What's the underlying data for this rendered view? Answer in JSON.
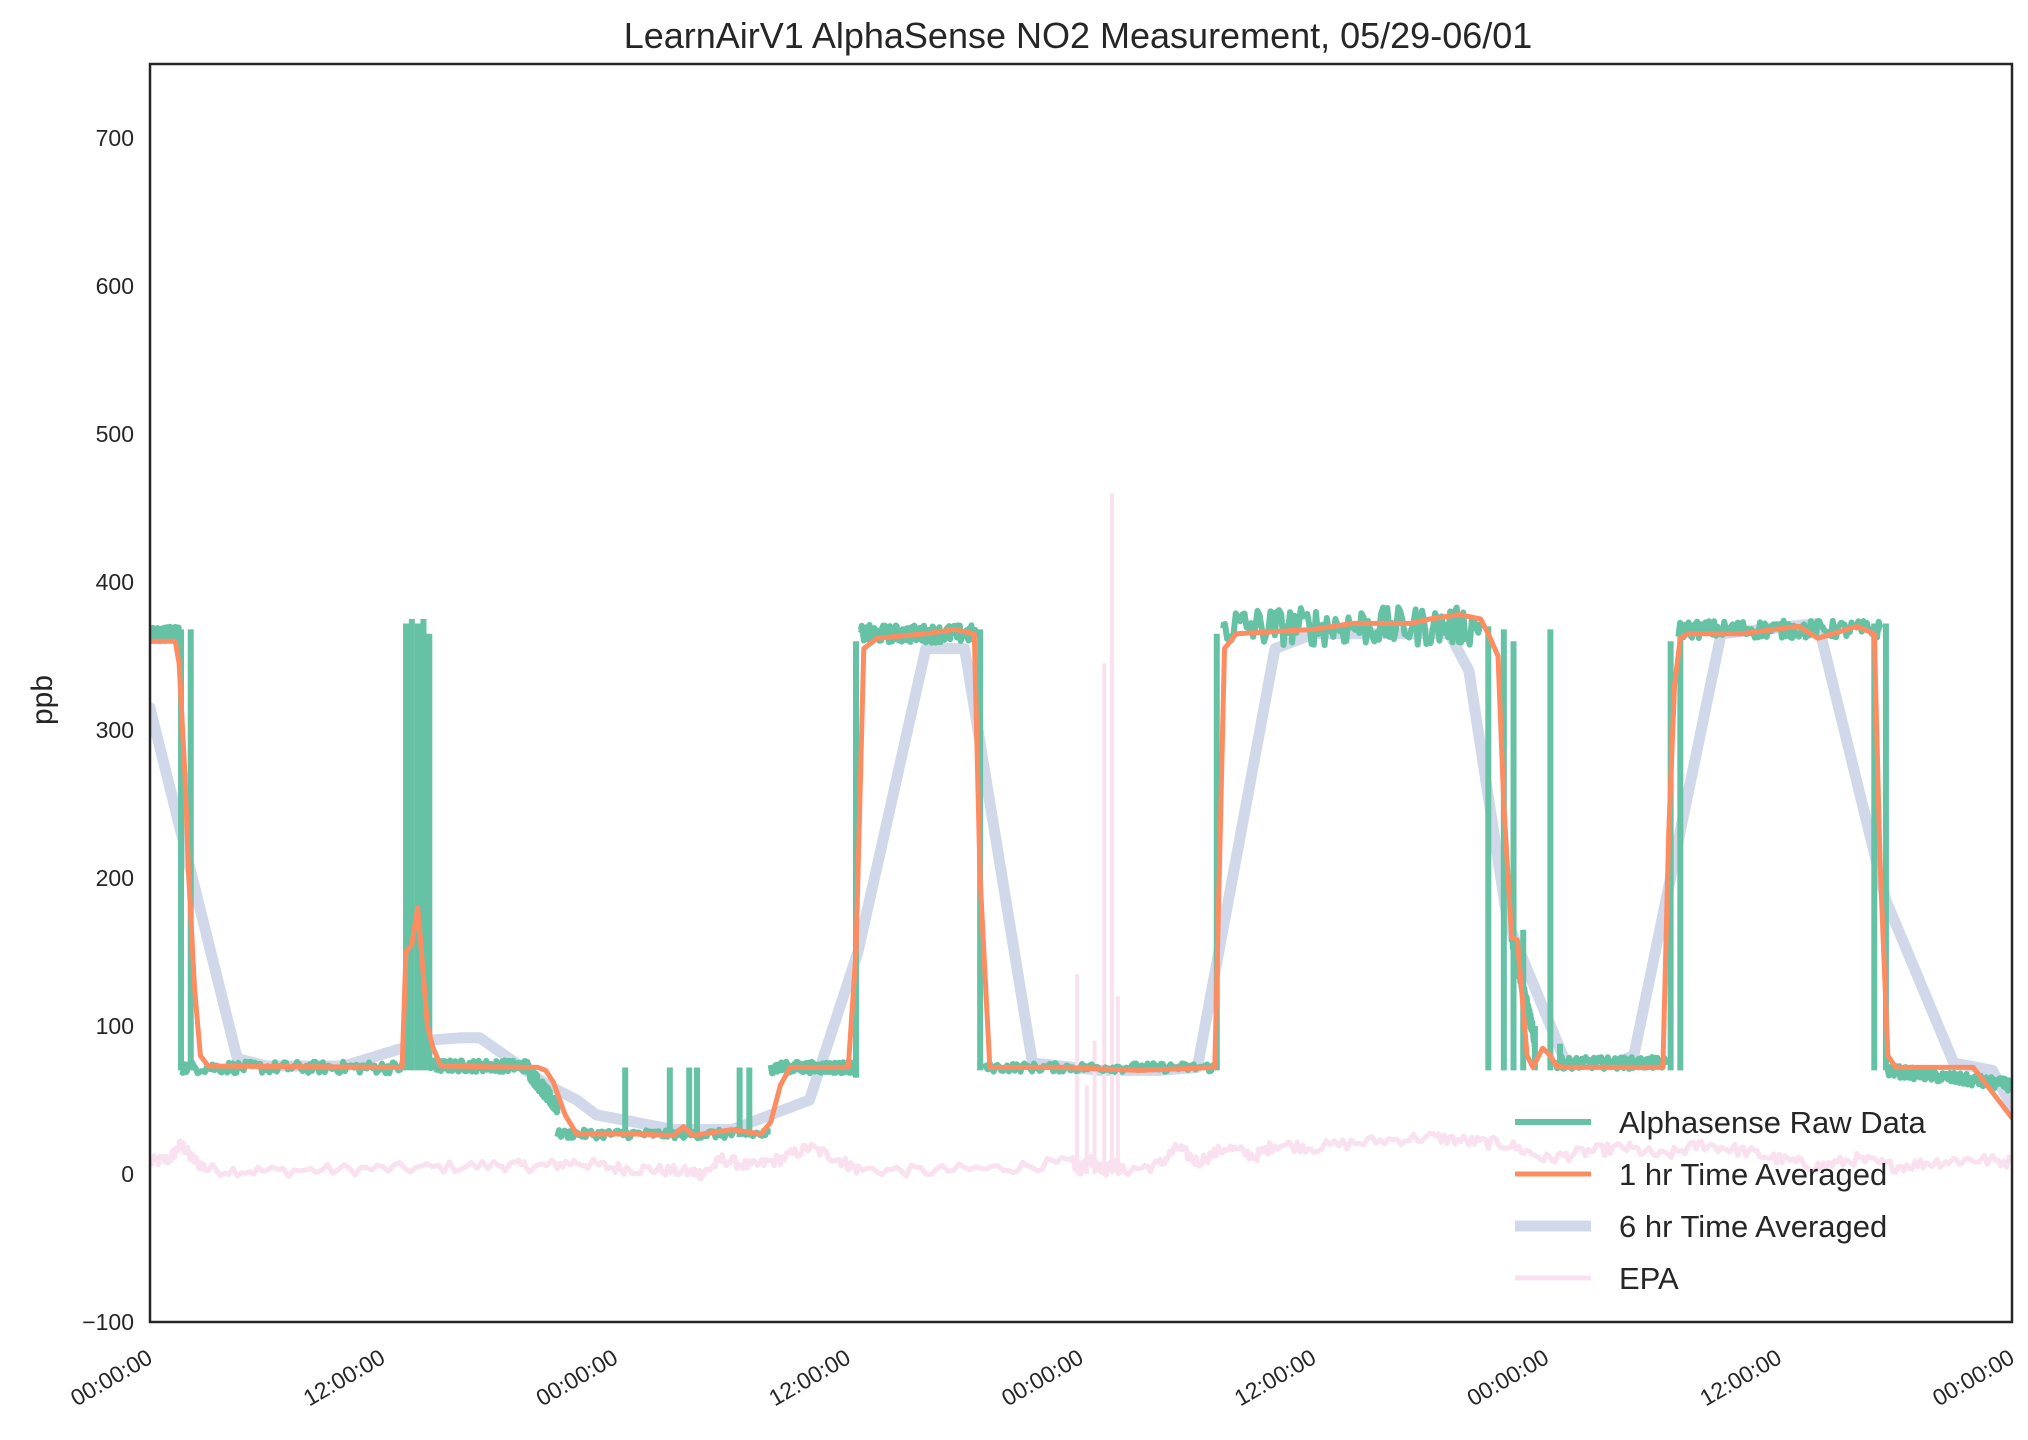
{
  "chart_data": {
    "type": "line",
    "title": "LearnAirV1 AlphaSense NO2 Measurement, 05/29-06/01",
    "xlabel": "",
    "ylabel": "ppb",
    "xlim": [
      0,
      96
    ],
    "ylim": [
      -100,
      750
    ],
    "x_unit": "hours since 05/29 00:00",
    "x_ticks": [
      {
        "value": 0,
        "label": "00:00:00"
      },
      {
        "value": 12,
        "label": "12:00:00"
      },
      {
        "value": 24,
        "label": "00:00:00"
      },
      {
        "value": 36,
        "label": "12:00:00"
      },
      {
        "value": 48,
        "label": "00:00:00"
      },
      {
        "value": 60,
        "label": "12:00:00"
      },
      {
        "value": 72,
        "label": "00:00:00"
      },
      {
        "value": 84,
        "label": "12:00:00"
      },
      {
        "value": 96,
        "label": "00:00:00"
      }
    ],
    "y_ticks": [
      {
        "value": -100,
        "label": "−100"
      },
      {
        "value": 0,
        "label": "0"
      },
      {
        "value": 100,
        "label": "100"
      },
      {
        "value": 200,
        "label": "200"
      },
      {
        "value": 300,
        "label": "300"
      },
      {
        "value": 400,
        "label": "400"
      },
      {
        "value": 500,
        "label": "500"
      },
      {
        "value": 600,
        "label": "600"
      },
      {
        "value": 700,
        "label": "700"
      }
    ],
    "grid": false,
    "legend_position": "lower-right",
    "series": [
      {
        "name": "Alphasense Raw Data",
        "color": "#66c2a5",
        "style": "raw",
        "segments": [
          {
            "x": [
              0,
              1.5
            ],
            "y": [
              365,
              365
            ],
            "noise": 5
          },
          {
            "x": [
              1.6,
              13
            ],
            "y": [
              72,
              72
            ],
            "noise": 4
          },
          {
            "x": [
              13.2,
              14.2
            ],
            "y": [
              150,
              180
            ],
            "noise": 5
          },
          {
            "x": [
              14.3,
              19.5
            ],
            "y": [
              73,
              73
            ],
            "noise": 4
          },
          {
            "x": [
              19.5,
              21
            ],
            "y": [
              70,
              45
            ],
            "noise": 5
          },
          {
            "x": [
              21,
              32
            ],
            "y": [
              27,
              27
            ],
            "noise": 3
          },
          {
            "x": [
              32,
              36.4
            ],
            "y": [
              72,
              72
            ],
            "noise": 4
          },
          {
            "x": [
              36.6,
              42.6
            ],
            "y": [
              365,
              365
            ],
            "noise": 6
          },
          {
            "x": [
              43,
              54.9
            ],
            "y": [
              72,
              72
            ],
            "noise": 3
          },
          {
            "x": [
              55.2,
              68.6
            ],
            "y": [
              370,
              370
            ],
            "noise": 13
          },
          {
            "x": [
              70.2,
              71.4
            ],
            "y": [
              160,
              90
            ],
            "noise": 5
          },
          {
            "x": [
              72.5,
              78.2
            ],
            "y": [
              75,
              75
            ],
            "noise": 4
          },
          {
            "x": [
              78.8,
              89.3
            ],
            "y": [
              368,
              368
            ],
            "noise": 6
          },
          {
            "x": [
              89.6,
              96
            ],
            "y": [
              70,
              60
            ],
            "noise": 4
          }
        ],
        "spikes": [
          {
            "x": 1.6,
            "y_low": 70,
            "y_high": 368
          },
          {
            "x": 2.1,
            "y_low": 70,
            "y_high": 368
          },
          {
            "x": 13.2,
            "y_low": 70,
            "y_high": 372
          },
          {
            "x": 13.5,
            "y_low": 70,
            "y_high": 375
          },
          {
            "x": 13.8,
            "y_low": 70,
            "y_high": 372
          },
          {
            "x": 14.1,
            "y_low": 70,
            "y_high": 375
          },
          {
            "x": 14.4,
            "y_low": 70,
            "y_high": 365
          },
          {
            "x": 24.5,
            "y_low": 25,
            "y_high": 72
          },
          {
            "x": 26.8,
            "y_low": 25,
            "y_high": 72
          },
          {
            "x": 27.8,
            "y_low": 25,
            "y_high": 72
          },
          {
            "x": 28.2,
            "y_low": 25,
            "y_high": 72
          },
          {
            "x": 30.4,
            "y_low": 25,
            "y_high": 72
          },
          {
            "x": 30.9,
            "y_low": 25,
            "y_high": 72
          },
          {
            "x": 36.4,
            "y_low": 65,
            "y_high": 360
          },
          {
            "x": 42.8,
            "y_low": 70,
            "y_high": 368
          },
          {
            "x": 55.0,
            "y_low": 70,
            "y_high": 365
          },
          {
            "x": 69.0,
            "y_low": 70,
            "y_high": 370
          },
          {
            "x": 69.8,
            "y_low": 70,
            "y_high": 368
          },
          {
            "x": 70.3,
            "y_low": 70,
            "y_high": 360
          },
          {
            "x": 70.8,
            "y_low": 70,
            "y_high": 165
          },
          {
            "x": 71.4,
            "y_low": 70,
            "y_high": 100
          },
          {
            "x": 72.2,
            "y_low": 70,
            "y_high": 368
          },
          {
            "x": 72.7,
            "y_low": 70,
            "y_high": 88
          },
          {
            "x": 78.4,
            "y_low": 70,
            "y_high": 360
          },
          {
            "x": 78.9,
            "y_low": 70,
            "y_high": 368
          },
          {
            "x": 88.9,
            "y_low": 70,
            "y_high": 372
          },
          {
            "x": 89.5,
            "y_low": 70,
            "y_high": 372
          }
        ]
      },
      {
        "name": "1 hr Time Averaged",
        "color": "#fc8d62",
        "style": "solid",
        "x": [
          0,
          1.3,
          1.5,
          1.8,
          2.0,
          2.3,
          2.6,
          3.0,
          13.0,
          13.2,
          13.5,
          13.8,
          14.0,
          14.3,
          14.6,
          15.0,
          19.5,
          20.0,
          20.4,
          20.8,
          21.4,
          22.0,
          25.0,
          27.0,
          27.5,
          28.0,
          30.0,
          31.5,
          32.0,
          32.5,
          33.0,
          36.0,
          36.4,
          36.8,
          37.5,
          40.0,
          41.5,
          42.5,
          42.8,
          43.3,
          47.0,
          51.0,
          54.9,
          55.4,
          56.0,
          60.0,
          62.0,
          65.0,
          66.0,
          67.5,
          68.6,
          69.0,
          69.5,
          69.8,
          70.2,
          70.5,
          71.0,
          71.3,
          71.8,
          72.2,
          72.5,
          73.0,
          78.0,
          78.3,
          78.6,
          78.9,
          79.3,
          82.0,
          85.0,
          86.0,
          88.0,
          88.9,
          89.2,
          89.6,
          90.0,
          94.0,
          96.0
        ],
        "y": [
          360,
          360,
          345,
          270,
          200,
          125,
          80,
          73,
          72,
          150,
          155,
          180,
          150,
          100,
          85,
          73,
          72,
          72,
          70,
          62,
          40,
          27,
          27,
          26,
          32,
          26,
          30,
          27,
          35,
          60,
          72,
          72,
          150,
          355,
          362,
          365,
          368,
          365,
          200,
          72,
          72,
          70,
          72,
          355,
          365,
          368,
          372,
          372,
          375,
          378,
          375,
          365,
          350,
          250,
          160,
          158,
          80,
          72,
          85,
          80,
          73,
          72,
          72,
          230,
          330,
          362,
          365,
          365,
          370,
          362,
          370,
          365,
          210,
          80,
          72,
          72,
          38
        ]
      },
      {
        "name": "6 hr Time Averaged",
        "color": "#d1d8e9",
        "style": "solid",
        "x": [
          0,
          4.5,
          6.0,
          10.0,
          13.0,
          14.0,
          16.0,
          17.0,
          20.5,
          22.0,
          23.0,
          27.0,
          30.0,
          33.0,
          34.0,
          36.5,
          40.0,
          42.0,
          45.5,
          49.0,
          52.0,
          54.0,
          58.0,
          60.0,
          67.0,
          68.0,
          70.0,
          73.0,
          75.5,
          76.5,
          81.0,
          86.0,
          89.5,
          93.0,
          95.0,
          96.0
        ],
        "y": [
          315,
          78,
          73,
          73,
          85,
          90,
          92,
          92,
          60,
          50,
          40,
          30,
          30,
          45,
          50,
          150,
          355,
          355,
          75,
          70,
          70,
          72,
          355,
          365,
          365,
          340,
          170,
          75,
          75,
          80,
          365,
          372,
          185,
          75,
          70,
          45
        ]
      },
      {
        "name": "EPA",
        "color": "#f9e1f0",
        "style": "epa",
        "x": [
          0,
          1.0,
          1.6,
          2.2,
          3.0,
          6.0,
          10.0,
          14.0,
          18.0,
          20.0,
          22.0,
          24.0,
          26.0,
          28.0,
          28.5,
          29.5,
          31.0,
          32.5,
          34.0,
          35.5,
          36.5,
          40.0,
          44.0,
          47.5,
          48.0,
          48.5,
          49.0,
          49.3,
          49.7,
          50.0,
          52.0,
          53.0,
          54.0,
          55.5,
          57.0,
          58.0,
          60.0,
          63.0,
          66.0,
          68.0,
          70.0,
          72.0,
          74.0,
          76.0,
          78.0,
          80.0,
          82.0,
          84.0,
          86.0,
          88.0,
          90.0,
          92.0,
          94.0,
          96.0
        ],
        "y": [
          8,
          10,
          20,
          10,
          3,
          2,
          3,
          4,
          6,
          5,
          8,
          4,
          3,
          1,
          0,
          10,
          5,
          10,
          18,
          10,
          3,
          2,
          4,
          8,
          3,
          10,
          5,
          3,
          8,
          2,
          6,
          18,
          8,
          18,
          12,
          20,
          18,
          22,
          25,
          22,
          20,
          10,
          15,
          18,
          12,
          20,
          16,
          10,
          5,
          10,
          5,
          8,
          10,
          8
        ],
        "noise": 4,
        "spikes": [
          {
            "x": 47.8,
            "y_low": 0,
            "y_high": 135
          },
          {
            "x": 48.3,
            "y_low": 0,
            "y_high": 60
          },
          {
            "x": 48.7,
            "y_low": 0,
            "y_high": 90
          },
          {
            "x": 49.2,
            "y_low": 0,
            "y_high": 345
          },
          {
            "x": 49.6,
            "y_low": 0,
            "y_high": 460
          },
          {
            "x": 49.9,
            "y_low": 0,
            "y_high": 120
          }
        ]
      }
    ]
  }
}
